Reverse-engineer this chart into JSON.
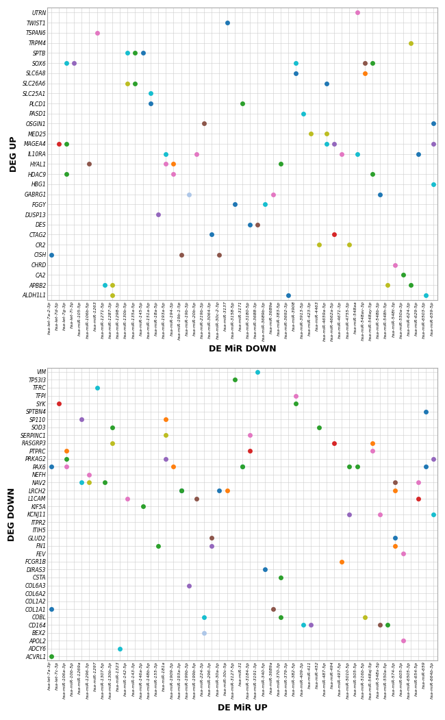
{
  "top_panel": {
    "xlabel": "DE MiR DOWN",
    "ylabel": "DEG UP",
    "y_labels": [
      "UTRN",
      "TWIST1",
      "TSPAN6",
      "TRPM4",
      "SPTB",
      "SOX6",
      "SLC6A8",
      "SLC26A6",
      "SLC25A1",
      "PLCD1",
      "PASD1",
      "OSGIN1",
      "MED25",
      "MAGEA4",
      "IL10RA",
      "HYAL1",
      "HDAC9",
      "HBG1",
      "GABRG1",
      "FGGY",
      "DUSP13",
      "DES",
      "CTAG2",
      "CR2",
      "CISH",
      "CHRD",
      "CA2",
      "APBB2",
      "ALDH1L1"
    ],
    "x_labels": [
      "hsa-let-7a-2-3p",
      "hsa-let-7d-3p",
      "hsa-let-7g-3p",
      "hsa-let-7i-3p",
      "hsa-miR-105-5p",
      "hsa-miR-106b-5p",
      "hsa-miR-1263",
      "hsa-miR-1271-5p",
      "hsa-miR-1287-3p",
      "hsa-miR-1298-3p",
      "hsa-miR-130b-5p",
      "hsa-miR-135a-5p",
      "hsa-miR-145-5p",
      "hsa-miR-151a-5p",
      "hsa-miR-18a-5p",
      "hsa-miR-193a-5p",
      "hsa-miR-194-3p",
      "hsa-miR-19b-1-5p",
      "hsa-miR-19b-3p",
      "hsa-miR-20b-5p",
      "hsa-miR-219b-3p",
      "hsa-miR-3064-3p",
      "hsa-miR-30c-2-3p",
      "hsa-miR-3137",
      "hsa-miR-3158-5p",
      "hsa-miR-3171",
      "hsa-miR-3180-5p",
      "hsa-miR-3688-3p",
      "hsa-miR-3689b-3p",
      "hsa-miR-3689e",
      "hsa-miR-383-5p",
      "hsa-miR-3692-3p",
      "hsa-miR-3908",
      "hsa-miR-3913-5p",
      "hsa-miR-423-3p",
      "hsa-miR-4463",
      "hsa-miR-4659a-5p",
      "hsa-miR-4662a-5p",
      "hsa-miR-4671-3p",
      "hsa-miR-4755-3p",
      "hsa-miR-548aa",
      "hsa-miR-548av-3p",
      "hsa-miR-548ay-5p",
      "hsa-miR-548b-3p",
      "hsa-miR-548h-5p",
      "hsa-miR-548t-3p",
      "hsa-miR-550a-3p",
      "hsa-miR-624-3p",
      "hsa-miR-629-5p",
      "hsa-miR-6503-3p",
      "hsa-miR-659-5p"
    ],
    "dots": [
      {
        "x": "hsa-let-7a-2-3p",
        "y": "CISH",
        "color": "#1f77b4"
      },
      {
        "x": "hsa-let-7d-3p",
        "y": "MAGEA4",
        "color": "#d62728"
      },
      {
        "x": "hsa-let-7g-3p",
        "y": "MAGEA4",
        "color": "#2ca02c"
      },
      {
        "x": "hsa-let-7g-3p",
        "y": "HDAC9",
        "color": "#2ca02c"
      },
      {
        "x": "hsa-let-7g-3p",
        "y": "SOX6",
        "color": "#17becf"
      },
      {
        "x": "hsa-let-7i-3p",
        "y": "SOX6",
        "color": "#9467bd"
      },
      {
        "x": "hsa-miR-106b-5p",
        "y": "HYAL1",
        "color": "#8c564b"
      },
      {
        "x": "hsa-miR-1263",
        "y": "TSPAN6",
        "color": "#e377c2"
      },
      {
        "x": "hsa-miR-1271-5p",
        "y": "APBB2",
        "color": "#17becf"
      },
      {
        "x": "hsa-miR-1287-3p",
        "y": "APBB2",
        "color": "#bcbd22"
      },
      {
        "x": "hsa-miR-1287-3p",
        "y": "ALDH1L1",
        "color": "#bcbd22"
      },
      {
        "x": "hsa-miR-130b-5p",
        "y": "SPTB",
        "color": "#17becf"
      },
      {
        "x": "hsa-miR-130b-5p",
        "y": "SLC26A6",
        "color": "#bcbd22"
      },
      {
        "x": "hsa-miR-135a-5p",
        "y": "SPTB",
        "color": "#2ca02c"
      },
      {
        "x": "hsa-miR-135a-5p",
        "y": "SLC26A6",
        "color": "#2ca02c"
      },
      {
        "x": "hsa-miR-145-5p",
        "y": "SPTB",
        "color": "#1f77b4"
      },
      {
        "x": "hsa-miR-151a-5p",
        "y": "PLCD1",
        "color": "#1f77b4"
      },
      {
        "x": "hsa-miR-151a-5p",
        "y": "SLC25A1",
        "color": "#17becf"
      },
      {
        "x": "hsa-miR-18a-5p",
        "y": "DUSP13",
        "color": "#9467bd"
      },
      {
        "x": "hsa-miR-193a-5p",
        "y": "HYAL1",
        "color": "#e377c2"
      },
      {
        "x": "hsa-miR-193a-5p",
        "y": "IL10RA",
        "color": "#17becf"
      },
      {
        "x": "hsa-miR-194-3p",
        "y": "HYAL1",
        "color": "#ff7f0e"
      },
      {
        "x": "hsa-miR-194-3p",
        "y": "HDAC9",
        "color": "#e377c2"
      },
      {
        "x": "hsa-miR-19b-1-5p",
        "y": "CISH",
        "color": "#8c564b"
      },
      {
        "x": "hsa-miR-19b-3p",
        "y": "GABRG1",
        "color": "#aec7e8"
      },
      {
        "x": "hsa-miR-20b-5p",
        "y": "IL10RA",
        "color": "#e377c2"
      },
      {
        "x": "hsa-miR-219b-3p",
        "y": "OSGIN1",
        "color": "#8c564b"
      },
      {
        "x": "hsa-miR-3064-3p",
        "y": "CTAG2",
        "color": "#1f77b4"
      },
      {
        "x": "hsa-miR-30c-2-3p",
        "y": "CISH",
        "color": "#8c564b"
      },
      {
        "x": "hsa-miR-3137",
        "y": "TWIST1",
        "color": "#1f77b4"
      },
      {
        "x": "hsa-miR-3158-5p",
        "y": "FGGY",
        "color": "#1f77b4"
      },
      {
        "x": "hsa-miR-3171",
        "y": "PLCD1",
        "color": "#2ca02c"
      },
      {
        "x": "hsa-miR-3180-5p",
        "y": "DES",
        "color": "#1f77b4"
      },
      {
        "x": "hsa-miR-3688-3p",
        "y": "DES",
        "color": "#8c564b"
      },
      {
        "x": "hsa-miR-3689b-3p",
        "y": "FGGY",
        "color": "#17becf"
      },
      {
        "x": "hsa-miR-3689e",
        "y": "GABRG1",
        "color": "#e377c2"
      },
      {
        "x": "hsa-miR-383-5p",
        "y": "HYAL1",
        "color": "#2ca02c"
      },
      {
        "x": "hsa-miR-3692-3p",
        "y": "ALDH1L1",
        "color": "#1f77b4"
      },
      {
        "x": "hsa-miR-3908",
        "y": "SLC6A8",
        "color": "#1f77b4"
      },
      {
        "x": "hsa-miR-3908",
        "y": "SOX6",
        "color": "#17becf"
      },
      {
        "x": "hsa-miR-3913-5p",
        "y": "PASD1",
        "color": "#17becf"
      },
      {
        "x": "hsa-miR-423-3p",
        "y": "MED25",
        "color": "#bcbd22"
      },
      {
        "x": "hsa-miR-4463",
        "y": "CR2",
        "color": "#bcbd22"
      },
      {
        "x": "hsa-miR-4659a-5p",
        "y": "MAGEA4",
        "color": "#17becf"
      },
      {
        "x": "hsa-miR-4659a-5p",
        "y": "MED25",
        "color": "#bcbd22"
      },
      {
        "x": "hsa-miR-4659a-5p",
        "y": "SLC26A6",
        "color": "#1f77b4"
      },
      {
        "x": "hsa-miR-4662a-5p",
        "y": "CTAG2",
        "color": "#d62728"
      },
      {
        "x": "hsa-miR-4662a-5p",
        "y": "MAGEA4",
        "color": "#9467bd"
      },
      {
        "x": "hsa-miR-4671-3p",
        "y": "IL10RA",
        "color": "#e377c2"
      },
      {
        "x": "hsa-miR-4755-3p",
        "y": "CR2",
        "color": "#bcbd22"
      },
      {
        "x": "hsa-miR-548aa",
        "y": "UTRN",
        "color": "#e377c2"
      },
      {
        "x": "hsa-miR-548aa",
        "y": "IL10RA",
        "color": "#17becf"
      },
      {
        "x": "hsa-miR-548av-3p",
        "y": "SOX6",
        "color": "#8c564b"
      },
      {
        "x": "hsa-miR-548av-3p",
        "y": "SLC6A8",
        "color": "#ff7f0e"
      },
      {
        "x": "hsa-miR-548ay-5p",
        "y": "HDAC9",
        "color": "#2ca02c"
      },
      {
        "x": "hsa-miR-548ay-5p",
        "y": "SOX6",
        "color": "#2ca02c"
      },
      {
        "x": "hsa-miR-548b-3p",
        "y": "GABRG1",
        "color": "#1f77b4"
      },
      {
        "x": "hsa-miR-548h-5p",
        "y": "APBB2",
        "color": "#bcbd22"
      },
      {
        "x": "hsa-miR-548t-3p",
        "y": "CHRD",
        "color": "#e377c2"
      },
      {
        "x": "hsa-miR-550a-3p",
        "y": "CA2",
        "color": "#2ca02c"
      },
      {
        "x": "hsa-miR-624-3p",
        "y": "APBB2",
        "color": "#2ca02c"
      },
      {
        "x": "hsa-miR-624-3p",
        "y": "TRPM4",
        "color": "#bcbd22"
      },
      {
        "x": "hsa-miR-629-5p",
        "y": "IL10RA",
        "color": "#1f77b4"
      },
      {
        "x": "hsa-miR-6503-3p",
        "y": "ALDH1L1",
        "color": "#17becf"
      },
      {
        "x": "hsa-miR-659-5p",
        "y": "HBG1",
        "color": "#17becf"
      },
      {
        "x": "hsa-miR-659-5p",
        "y": "MAGEA4",
        "color": "#9467bd"
      },
      {
        "x": "hsa-miR-659-5p",
        "y": "OSGIN1",
        "color": "#1f77b4"
      }
    ]
  },
  "bottom_panel": {
    "xlabel": "DE MiR UP",
    "ylabel": "DEG DOWN",
    "y_labels": [
      "VIM",
      "TP53I3",
      "TFRC",
      "TFPI",
      "SYK",
      "SPTBN4",
      "SP110",
      "SOD3",
      "SERPINC1",
      "RASGRP3",
      "PTPRC",
      "PRKAG2",
      "PAX6",
      "NEFH",
      "NAV2",
      "LRCH2",
      "L1CAM",
      "KIF5A",
      "KCNJ11",
      "ITPR2",
      "ITIH5",
      "GLUD2",
      "FN1",
      "FEV",
      "FCGR1B",
      "DIRAS3",
      "CSTA",
      "COL6A3",
      "COL6A2",
      "COL1A2",
      "COL1A1",
      "COBL",
      "CD164",
      "BEX2",
      "APOL2",
      "ADCY6",
      "ACVRL1"
    ],
    "x_labels": [
      "hsa-let-7a-3p",
      "hsa-let-7c-3p",
      "hsa-miR-106a-3p",
      "hsa-miR-10b-5p",
      "hsa-miR-1269a",
      "hsa-miR-1296-3p",
      "hsa-miR-1297",
      "hsa-miR-1307-5p",
      "hsa-miR-130b-3p",
      "hsa-miR-1323",
      "hsa-miR-142-5p",
      "hsa-miR-143-3p",
      "hsa-miR-146a-3p",
      "hsa-miR-148b-5p",
      "hsa-miR-155-3p",
      "hsa-miR-181a",
      "hsa-miR-1909-3p",
      "hsa-miR-193a-3p",
      "hsa-miR-199b-3p",
      "hsa-miR-199b-5p",
      "hsa-miR-224-3p",
      "hsa-miR-296-3p",
      "hsa-miR-30a-3p",
      "hsa-miR-30c-5p",
      "hsa-miR-3127-5p",
      "hsa-miR-31",
      "hsa-miR-3184-3p",
      "hsa-miR-3191-3p",
      "hsa-miR-340-5p",
      "hsa-miR-3689a",
      "hsa-miR-370-3p",
      "hsa-miR-379-3p",
      "hsa-miR-382-5p",
      "hsa-miR-409-3p",
      "hsa-miR-411",
      "hsa-miR-452",
      "hsa-miR-487-5p",
      "hsa-miR-494",
      "hsa-miR-497-5p",
      "hsa-miR-5010-5p",
      "hsa-miR-505-5p",
      "hsa-miR-516b-5p",
      "hsa-miR-548aj-5p",
      "hsa-miR-548x-5p",
      "hsa-miR-550a-5p",
      "hsa-miR-574-3p",
      "hsa-miR-605-3p",
      "hsa-miR-6505-3p",
      "hsa-miR-654-5p",
      "hsa-miR-659",
      "hsa-miR-664b-3p"
    ],
    "dots": [
      {
        "x": "hsa-let-7a-3p",
        "y": "COL1A1",
        "color": "#1f77b4"
      },
      {
        "x": "hsa-let-7a-3p",
        "y": "PAX6",
        "color": "#1f77b4"
      },
      {
        "x": "hsa-let-7a-3p",
        "y": "ACVRL1",
        "color": "#2ca02c"
      },
      {
        "x": "hsa-let-7c-3p",
        "y": "SYK",
        "color": "#d62728"
      },
      {
        "x": "hsa-miR-106a-3p",
        "y": "PTPRC",
        "color": "#ff7f0e"
      },
      {
        "x": "hsa-miR-106a-3p",
        "y": "PRKAG2",
        "color": "#2ca02c"
      },
      {
        "x": "hsa-miR-106a-3p",
        "y": "PAX6",
        "color": "#e377c2"
      },
      {
        "x": "hsa-miR-1269a",
        "y": "SP110",
        "color": "#9467bd"
      },
      {
        "x": "hsa-miR-1269a",
        "y": "NAV2",
        "color": "#17becf"
      },
      {
        "x": "hsa-miR-1296-3p",
        "y": "NEFH",
        "color": "#e377c2"
      },
      {
        "x": "hsa-miR-1296-3p",
        "y": "NAV2",
        "color": "#bcbd22"
      },
      {
        "x": "hsa-miR-1297",
        "y": "TFRC",
        "color": "#17becf"
      },
      {
        "x": "hsa-miR-1307-5p",
        "y": "NAV2",
        "color": "#2ca02c"
      },
      {
        "x": "hsa-miR-130b-3p",
        "y": "SOD3",
        "color": "#2ca02c"
      },
      {
        "x": "hsa-miR-130b-3p",
        "y": "RASGRP3",
        "color": "#bcbd22"
      },
      {
        "x": "hsa-miR-1323",
        "y": "ADCY6",
        "color": "#17becf"
      },
      {
        "x": "hsa-miR-142-5p",
        "y": "L1CAM",
        "color": "#e377c2"
      },
      {
        "x": "hsa-miR-146a-3p",
        "y": "KIF5A",
        "color": "#2ca02c"
      },
      {
        "x": "hsa-miR-155-3p",
        "y": "FN1",
        "color": "#2ca02c"
      },
      {
        "x": "hsa-miR-181a",
        "y": "SP110",
        "color": "#ff7f0e"
      },
      {
        "x": "hsa-miR-181a",
        "y": "SERPINC1",
        "color": "#bcbd22"
      },
      {
        "x": "hsa-miR-181a",
        "y": "PRKAG2",
        "color": "#9467bd"
      },
      {
        "x": "hsa-miR-1909-3p",
        "y": "PAX6",
        "color": "#ff7f0e"
      },
      {
        "x": "hsa-miR-193a-3p",
        "y": "LRCH2",
        "color": "#1f77b4"
      },
      {
        "x": "hsa-miR-193a-3p",
        "y": "LRCH2",
        "color": "#2ca02c"
      },
      {
        "x": "hsa-miR-199b-3p",
        "y": "COL6A3",
        "color": "#9467bd"
      },
      {
        "x": "hsa-miR-199b-5p",
        "y": "L1CAM",
        "color": "#8c564b"
      },
      {
        "x": "hsa-miR-224-3p",
        "y": "COBL",
        "color": "#17becf"
      },
      {
        "x": "hsa-miR-224-3p",
        "y": "BEX2",
        "color": "#aec7e8"
      },
      {
        "x": "hsa-miR-296-3p",
        "y": "GLUD2",
        "color": "#8c564b"
      },
      {
        "x": "hsa-miR-296-3p",
        "y": "FN1",
        "color": "#9467bd"
      },
      {
        "x": "hsa-miR-30a-3p",
        "y": "LRCH2",
        "color": "#1f77b4"
      },
      {
        "x": "hsa-miR-30c-5p",
        "y": "LRCH2",
        "color": "#ff7f0e"
      },
      {
        "x": "hsa-miR-3127-5p",
        "y": "TP53I3",
        "color": "#2ca02c"
      },
      {
        "x": "hsa-miR-31",
        "y": "PAX6",
        "color": "#17becf"
      },
      {
        "x": "hsa-miR-31",
        "y": "PAX6",
        "color": "#2ca02c"
      },
      {
        "x": "hsa-miR-3184-3p",
        "y": "SERPINC1",
        "color": "#e377c2"
      },
      {
        "x": "hsa-miR-3184-3p",
        "y": "PTPRC",
        "color": "#d62728"
      },
      {
        "x": "hsa-miR-3191-3p",
        "y": "VIM",
        "color": "#17becf"
      },
      {
        "x": "hsa-miR-340-5p",
        "y": "DIRAS3",
        "color": "#1f77b4"
      },
      {
        "x": "hsa-miR-3689a",
        "y": "COL1A1",
        "color": "#8c564b"
      },
      {
        "x": "hsa-miR-370-3p",
        "y": "CSTA",
        "color": "#2ca02c"
      },
      {
        "x": "hsa-miR-370-3p",
        "y": "COBL",
        "color": "#2ca02c"
      },
      {
        "x": "hsa-miR-382-5p",
        "y": "TFPI",
        "color": "#e377c2"
      },
      {
        "x": "hsa-miR-382-5p",
        "y": "SYK",
        "color": "#2ca02c"
      },
      {
        "x": "hsa-miR-409-3p",
        "y": "CD164",
        "color": "#17becf"
      },
      {
        "x": "hsa-miR-411",
        "y": "CD164",
        "color": "#9467bd"
      },
      {
        "x": "hsa-miR-452",
        "y": "SOD3",
        "color": "#2ca02c"
      },
      {
        "x": "hsa-miR-494",
        "y": "RASGRP3",
        "color": "#d62728"
      },
      {
        "x": "hsa-miR-497-5p",
        "y": "FCGR1B",
        "color": "#ff7f0e"
      },
      {
        "x": "hsa-miR-5010-5p",
        "y": "KCNJ11",
        "color": "#9467bd"
      },
      {
        "x": "hsa-miR-5010-5p",
        "y": "PAX6",
        "color": "#2ca02c"
      },
      {
        "x": "hsa-miR-505-5p",
        "y": "PAX6",
        "color": "#2ca02c"
      },
      {
        "x": "hsa-miR-516b-5p",
        "y": "COBL",
        "color": "#bcbd22"
      },
      {
        "x": "hsa-miR-548aj-5p",
        "y": "PTPRC",
        "color": "#e377c2"
      },
      {
        "x": "hsa-miR-548aj-5p",
        "y": "RASGRP3",
        "color": "#ff7f0e"
      },
      {
        "x": "hsa-miR-548x-5p",
        "y": "CD164",
        "color": "#8c564b"
      },
      {
        "x": "hsa-miR-548x-5p",
        "y": "KCNJ11",
        "color": "#e377c2"
      },
      {
        "x": "hsa-miR-550a-5p",
        "y": "CD164",
        "color": "#2ca02c"
      },
      {
        "x": "hsa-miR-574-3p",
        "y": "NAV2",
        "color": "#8c564b"
      },
      {
        "x": "hsa-miR-574-3p",
        "y": "LRCH2",
        "color": "#ff7f0e"
      },
      {
        "x": "hsa-miR-574-3p",
        "y": "FN1",
        "color": "#ff7f0e"
      },
      {
        "x": "hsa-miR-574-3p",
        "y": "GLUD2",
        "color": "#1f77b4"
      },
      {
        "x": "hsa-miR-605-3p",
        "y": "FEV",
        "color": "#e377c2"
      },
      {
        "x": "hsa-miR-605-3p",
        "y": "APOL2",
        "color": "#e377c2"
      },
      {
        "x": "hsa-miR-654-5p",
        "y": "L1CAM",
        "color": "#d62728"
      },
      {
        "x": "hsa-miR-654-5p",
        "y": "NAV2",
        "color": "#e377c2"
      },
      {
        "x": "hsa-miR-659",
        "y": "SPTBN4",
        "color": "#1f77b4"
      },
      {
        "x": "hsa-miR-659",
        "y": "PAX6",
        "color": "#1f77b4"
      },
      {
        "x": "hsa-miR-664b-3p",
        "y": "PRKAG2",
        "color": "#9467bd"
      },
      {
        "x": "hsa-miR-664b-3p",
        "y": "KCNJ11",
        "color": "#17becf"
      }
    ]
  }
}
